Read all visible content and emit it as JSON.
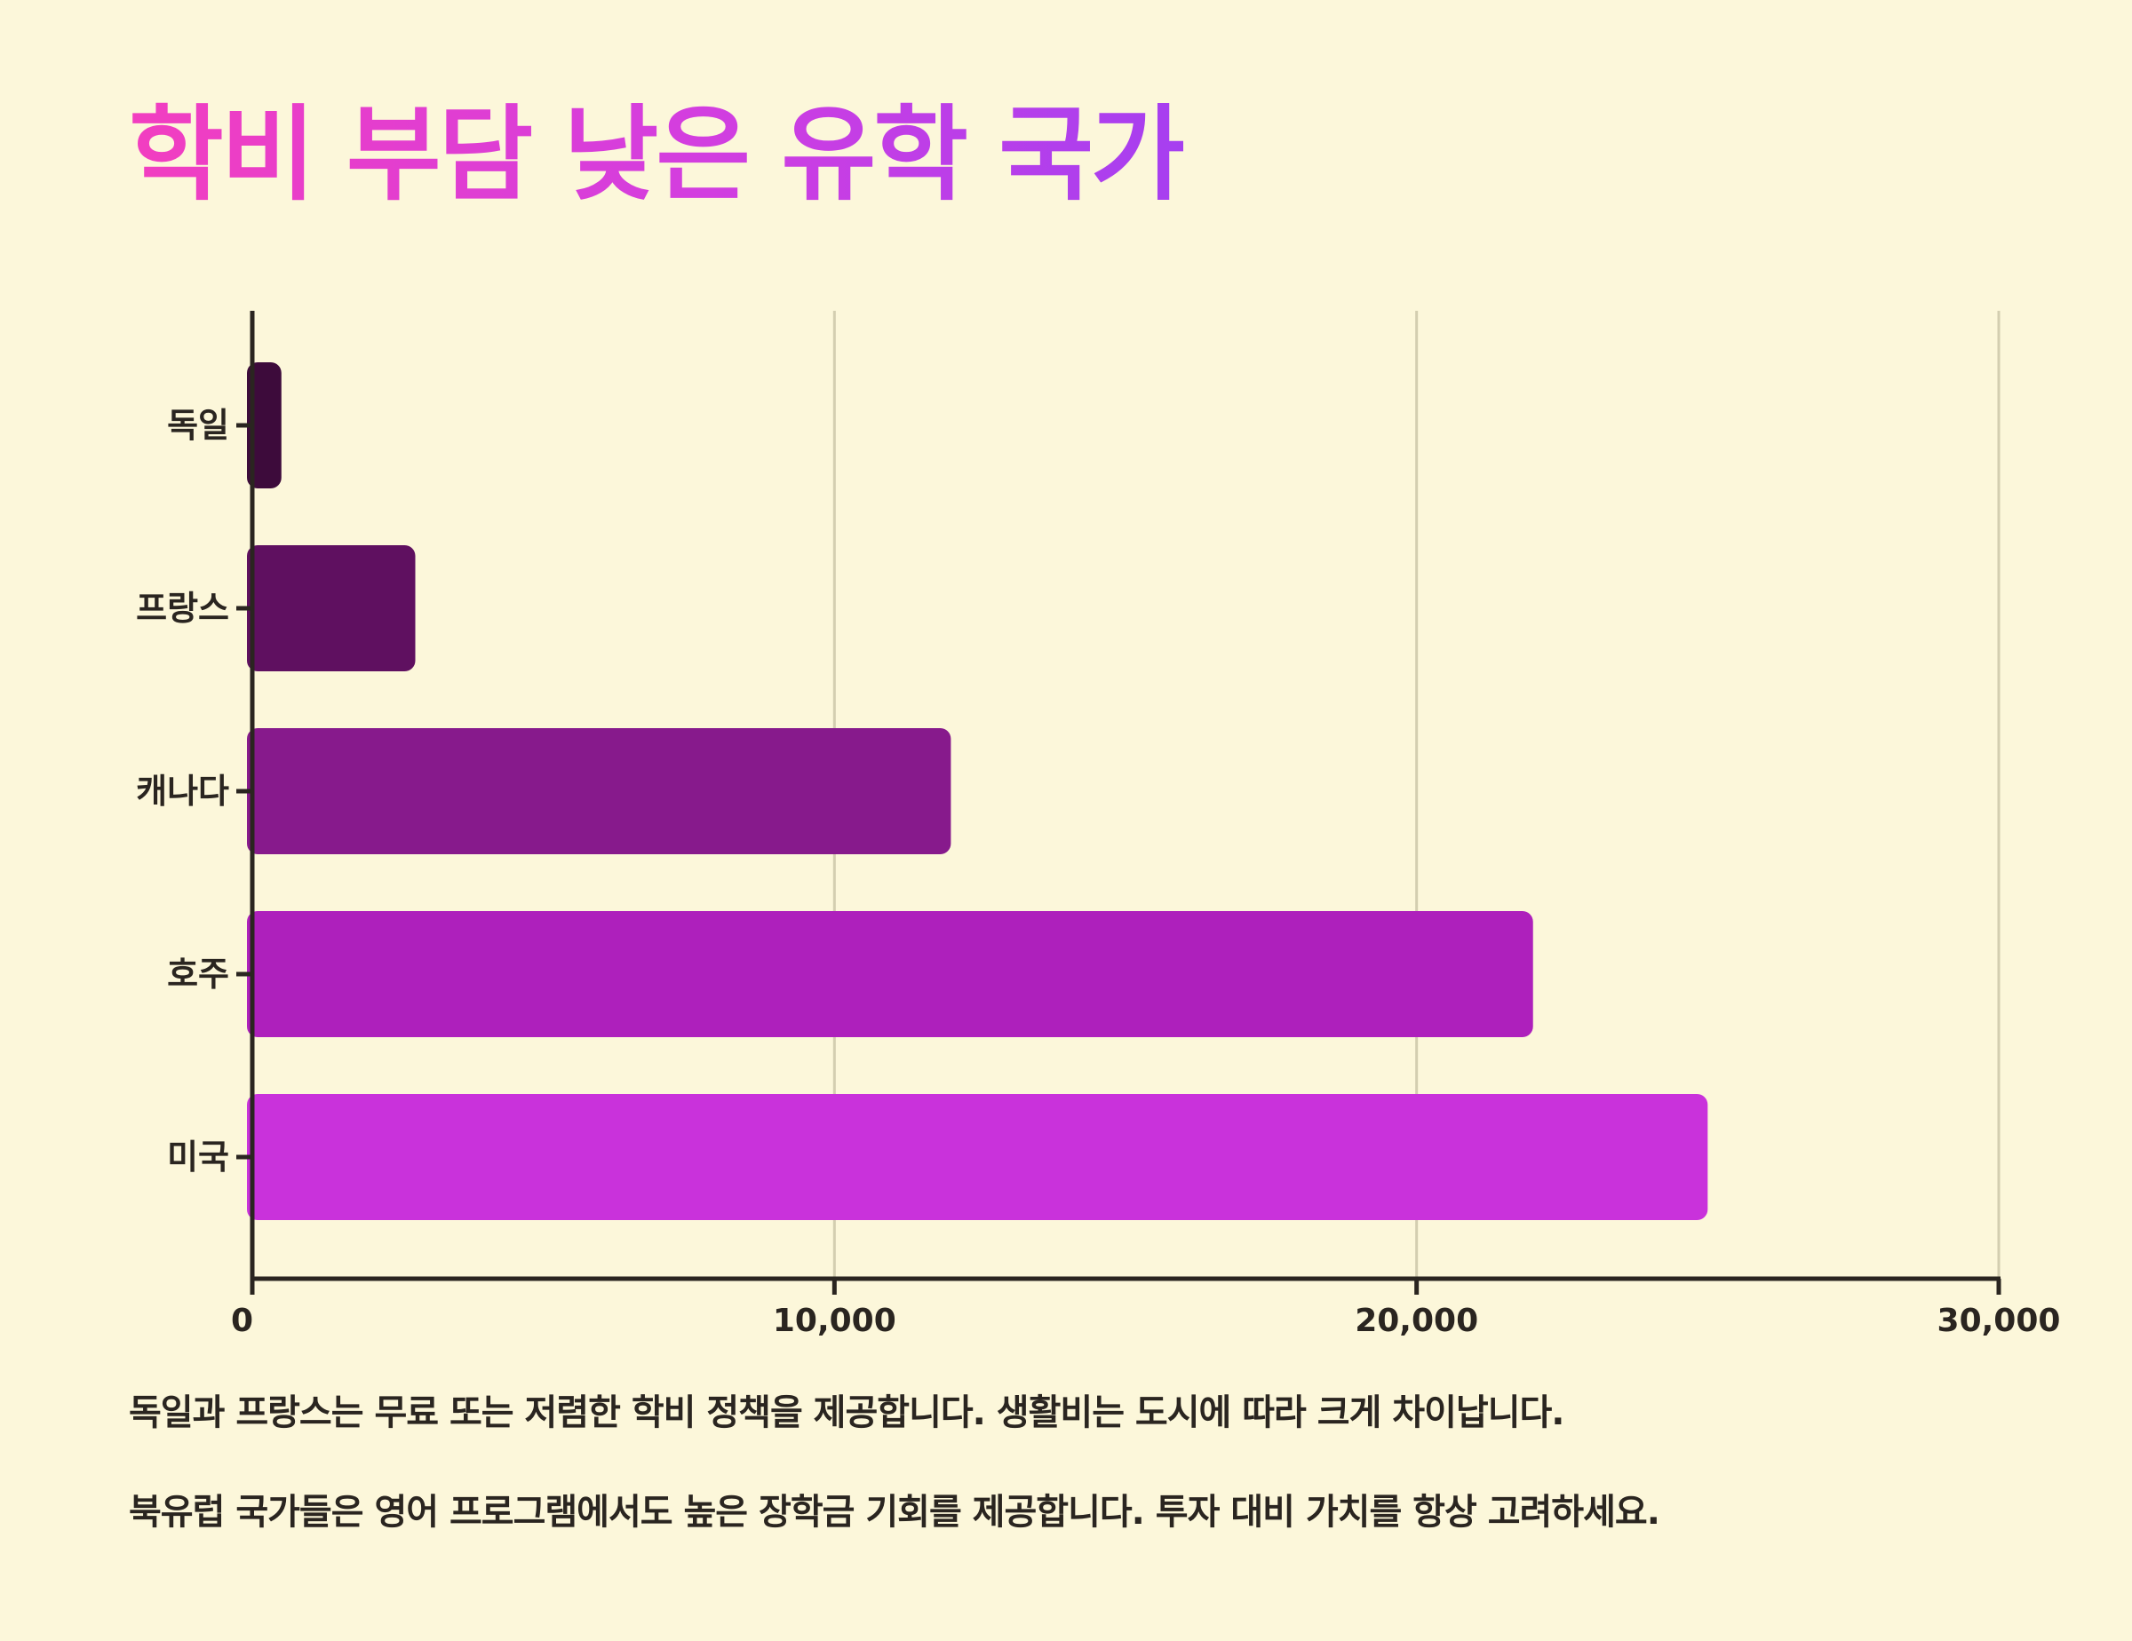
{
  "title": "학비 부담 낮은 유학 국가",
  "notes": [
    "독일과 프랑스는 무료 또는 저렴한 학비 정책을 제공합니다. 생활비는 도시에 따라 크게 차이납니다.",
    "북유럽 국가들은 영어 프로그램에서도 높은 장학금 기회를 제공합니다. 투자 대비 가치를 항상 고려하세요."
  ],
  "colors": {
    "background": "#fcf7da",
    "axis": "#2a2520",
    "grid": "#d3ceb0",
    "text": "#2a2520",
    "title_gradient": [
      "#f23ec0",
      "#a63ff0"
    ]
  },
  "chart_data": {
    "type": "bar",
    "orientation": "horizontal",
    "title": "학비 부담 낮은 유학 국가",
    "xlabel": "",
    "ylabel": "",
    "categories": [
      "독일",
      "프랑스",
      "캐나다",
      "호주",
      "미국"
    ],
    "values": [
      500,
      2800,
      12000,
      22000,
      25000
    ],
    "bar_colors": [
      "#3d0b3b",
      "#5f1060",
      "#871a8c",
      "#ae20bc",
      "#c932db"
    ],
    "xlim": [
      0,
      30000
    ],
    "x_ticks": [
      0,
      10000,
      20000,
      30000
    ],
    "x_tick_labels": [
      "0",
      "10,000",
      "20,000",
      "30,000"
    ],
    "grid": true,
    "legend": "none"
  }
}
